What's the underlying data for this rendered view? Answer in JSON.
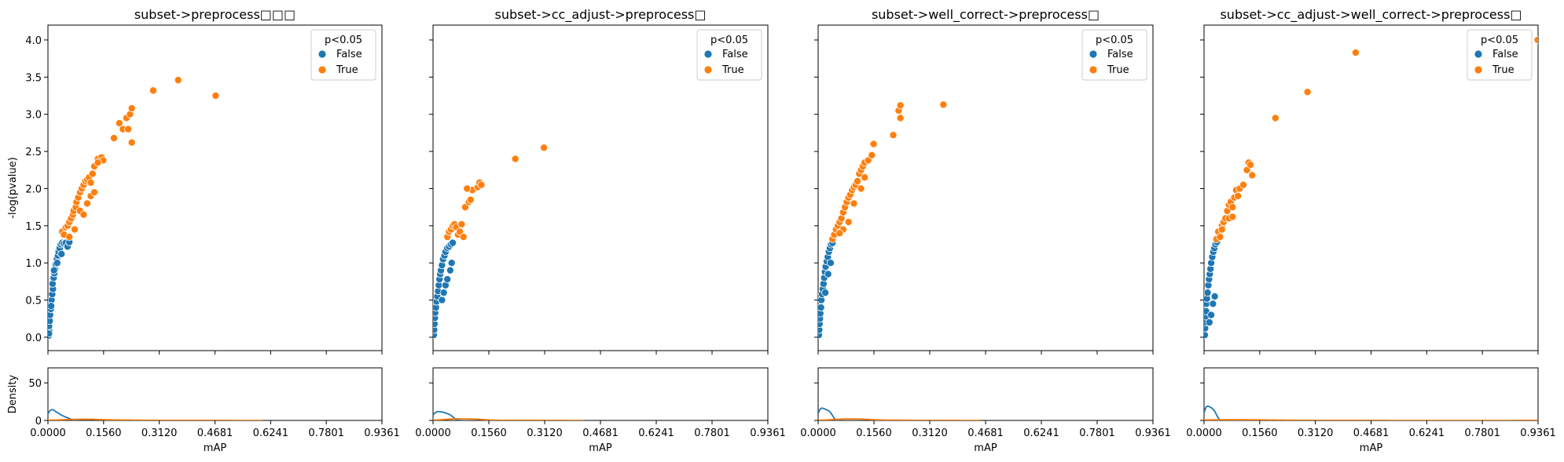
{
  "colors": {
    "false": "#1f77b4",
    "true": "#ff7f0e"
  },
  "shared": {
    "scatter_yticks": [
      "0.0",
      "0.5",
      "1.0",
      "1.5",
      "2.0",
      "2.5",
      "3.0",
      "3.5",
      "4.0"
    ],
    "density_yticks": [
      "0",
      "50"
    ],
    "xticks": [
      "0.0000",
      "0.1560",
      "0.3120",
      "0.4681",
      "0.6241",
      "0.7801",
      "0.9361"
    ],
    "ylabel": "-log(pvalue)",
    "density_ylabel": "Density",
    "xlabel": "mAP",
    "legend": {
      "title": "p<0.05",
      "entries": [
        "False",
        "True"
      ]
    }
  },
  "chart_data": [
    {
      "type": "scatter",
      "title": "subset->preprocess□□□",
      "xlim": [
        0,
        0.9361
      ],
      "ylim": [
        -0.18,
        4.2
      ],
      "density_ylim": [
        0,
        70
      ],
      "xlabel": "mAP",
      "ylabel": "-log(pvalue)",
      "series": [
        {
          "name": "False",
          "points": [
            [
              0.002,
              0.02
            ],
            [
              0.004,
              0.08
            ],
            [
              0.003,
              0.15
            ],
            [
              0.005,
              0.22
            ],
            [
              0.006,
              0.3
            ],
            [
              0.008,
              0.38
            ],
            [
              0.007,
              0.45
            ],
            [
              0.01,
              0.5
            ],
            [
              0.012,
              0.58
            ],
            [
              0.014,
              0.65
            ],
            [
              0.013,
              0.72
            ],
            [
              0.016,
              0.8
            ],
            [
              0.018,
              0.86
            ],
            [
              0.02,
              0.92
            ],
            [
              0.022,
              0.98
            ],
            [
              0.025,
              1.05
            ],
            [
              0.028,
              1.1
            ],
            [
              0.03,
              1.15
            ],
            [
              0.033,
              1.2
            ],
            [
              0.036,
              1.25
            ],
            [
              0.04,
              1.27
            ],
            [
              0.045,
              1.26
            ],
            [
              0.05,
              1.27
            ],
            [
              0.055,
              1.22
            ],
            [
              0.06,
              1.28
            ],
            [
              0.003,
              0.05
            ],
            [
              0.009,
              0.42
            ],
            [
              0.017,
              0.9
            ],
            [
              0.026,
              1.0
            ],
            [
              0.038,
              1.12
            ]
          ]
        },
        {
          "name": "True",
          "points": [
            [
              0.04,
              1.42
            ],
            [
              0.045,
              1.38
            ],
            [
              0.05,
              1.48
            ],
            [
              0.055,
              1.5
            ],
            [
              0.06,
              1.55
            ],
            [
              0.065,
              1.6
            ],
            [
              0.07,
              1.65
            ],
            [
              0.072,
              1.7
            ],
            [
              0.078,
              1.75
            ],
            [
              0.08,
              1.82
            ],
            [
              0.085,
              1.88
            ],
            [
              0.09,
              1.95
            ],
            [
              0.095,
              2.0
            ],
            [
              0.1,
              2.05
            ],
            [
              0.105,
              2.1
            ],
            [
              0.11,
              2.12
            ],
            [
              0.115,
              2.15
            ],
            [
              0.12,
              2.08
            ],
            [
              0.125,
              2.2
            ],
            [
              0.13,
              2.3
            ],
            [
              0.14,
              2.4
            ],
            [
              0.15,
              2.42
            ],
            [
              0.155,
              2.38
            ],
            [
              0.185,
              2.68
            ],
            [
              0.2,
              2.88
            ],
            [
              0.21,
              2.8
            ],
            [
              0.22,
              2.95
            ],
            [
              0.225,
              2.8
            ],
            [
              0.23,
              3.0
            ],
            [
              0.235,
              3.08
            ],
            [
              0.235,
              2.62
            ],
            [
              0.295,
              3.32
            ],
            [
              0.365,
              3.46
            ],
            [
              0.47,
              3.25
            ],
            [
              0.06,
              1.35
            ],
            [
              0.075,
              1.45
            ],
            [
              0.09,
              1.7
            ],
            [
              0.1,
              1.65
            ],
            [
              0.11,
              1.8
            ],
            [
              0.12,
              1.9
            ],
            [
              0.13,
              1.95
            ],
            [
              0.14,
              2.35
            ]
          ]
        }
      ]
    },
    {
      "type": "scatter",
      "title": "subset->cc_adjust->preprocess□",
      "xlim": [
        0,
        0.9361
      ],
      "ylim": [
        -0.18,
        4.2
      ],
      "density_ylim": [
        0,
        70
      ],
      "xlabel": "mAP",
      "ylabel": "",
      "series": [
        {
          "name": "False",
          "points": [
            [
              0.002,
              0.03
            ],
            [
              0.003,
              0.1
            ],
            [
              0.004,
              0.18
            ],
            [
              0.005,
              0.26
            ],
            [
              0.006,
              0.33
            ],
            [
              0.008,
              0.4
            ],
            [
              0.01,
              0.48
            ],
            [
              0.012,
              0.55
            ],
            [
              0.014,
              0.62
            ],
            [
              0.016,
              0.7
            ],
            [
              0.018,
              0.78
            ],
            [
              0.02,
              0.85
            ],
            [
              0.022,
              0.9
            ],
            [
              0.025,
              0.97
            ],
            [
              0.028,
              1.05
            ],
            [
              0.032,
              1.1
            ],
            [
              0.035,
              1.15
            ],
            [
              0.04,
              1.2
            ],
            [
              0.045,
              1.22
            ],
            [
              0.05,
              1.25
            ],
            [
              0.055,
              1.27
            ],
            [
              0.048,
              0.9
            ],
            [
              0.052,
              1.0
            ],
            [
              0.03,
              0.6
            ],
            [
              0.035,
              0.7
            ],
            [
              0.04,
              0.78
            ],
            [
              0.025,
              0.5
            ]
          ]
        },
        {
          "name": "True",
          "points": [
            [
              0.04,
              1.35
            ],
            [
              0.045,
              1.42
            ],
            [
              0.05,
              1.45
            ],
            [
              0.055,
              1.5
            ],
            [
              0.06,
              1.52
            ],
            [
              0.065,
              1.48
            ],
            [
              0.07,
              1.38
            ],
            [
              0.075,
              1.42
            ],
            [
              0.08,
              1.52
            ],
            [
              0.085,
              1.35
            ],
            [
              0.09,
              1.75
            ],
            [
              0.1,
              1.82
            ],
            [
              0.105,
              1.85
            ],
            [
              0.11,
              1.98
            ],
            [
              0.125,
              2.02
            ],
            [
              0.13,
              2.08
            ],
            [
              0.135,
              2.05
            ],
            [
              0.23,
              2.4
            ],
            [
              0.31,
              2.55
            ],
            [
              0.095,
              2.0
            ]
          ]
        }
      ]
    },
    {
      "type": "scatter",
      "title": "subset->well_correct->preprocess□",
      "xlim": [
        0,
        0.9361
      ],
      "ylim": [
        -0.18,
        4.2
      ],
      "density_ylim": [
        0,
        70
      ],
      "xlabel": "mAP",
      "ylabel": "",
      "series": [
        {
          "name": "False",
          "points": [
            [
              0.002,
              0.03
            ],
            [
              0.003,
              0.1
            ],
            [
              0.004,
              0.18
            ],
            [
              0.005,
              0.25
            ],
            [
              0.006,
              0.32
            ],
            [
              0.008,
              0.4
            ],
            [
              0.009,
              0.5
            ],
            [
              0.011,
              0.58
            ],
            [
              0.013,
              0.65
            ],
            [
              0.015,
              0.72
            ],
            [
              0.017,
              0.8
            ],
            [
              0.019,
              0.88
            ],
            [
              0.021,
              0.95
            ],
            [
              0.024,
              1.02
            ],
            [
              0.027,
              1.08
            ],
            [
              0.03,
              1.15
            ],
            [
              0.033,
              1.2
            ],
            [
              0.036,
              1.25
            ],
            [
              0.04,
              1.27
            ],
            [
              0.028,
              0.85
            ],
            [
              0.02,
              0.6
            ],
            [
              0.035,
              1.0
            ]
          ]
        },
        {
          "name": "True",
          "points": [
            [
              0.04,
              1.32
            ],
            [
              0.045,
              1.38
            ],
            [
              0.05,
              1.45
            ],
            [
              0.055,
              1.5
            ],
            [
              0.06,
              1.55
            ],
            [
              0.065,
              1.6
            ],
            [
              0.07,
              1.68
            ],
            [
              0.075,
              1.75
            ],
            [
              0.08,
              1.82
            ],
            [
              0.085,
              1.88
            ],
            [
              0.09,
              1.92
            ],
            [
              0.095,
              1.98
            ],
            [
              0.1,
              2.02
            ],
            [
              0.105,
              2.05
            ],
            [
              0.11,
              2.1
            ],
            [
              0.115,
              2.2
            ],
            [
              0.12,
              2.25
            ],
            [
              0.125,
              2.3
            ],
            [
              0.13,
              2.35
            ],
            [
              0.14,
              2.38
            ],
            [
              0.15,
              2.45
            ],
            [
              0.155,
              2.6
            ],
            [
              0.21,
              2.72
            ],
            [
              0.225,
              3.05
            ],
            [
              0.23,
              3.12
            ],
            [
              0.23,
              2.95
            ],
            [
              0.35,
              3.13
            ],
            [
              0.07,
              1.45
            ],
            [
              0.085,
              1.55
            ],
            [
              0.1,
              1.8
            ],
            [
              0.12,
              2.0
            ],
            [
              0.13,
              2.15
            ],
            [
              0.06,
              1.4
            ]
          ]
        }
      ]
    },
    {
      "type": "scatter",
      "title": "subset->cc_adjust->well_correct->preprocess□",
      "xlim": [
        0,
        0.9361
      ],
      "ylim": [
        -0.18,
        4.2
      ],
      "density_ylim": [
        0,
        70
      ],
      "xlabel": "mAP",
      "ylabel": "",
      "series": [
        {
          "name": "False",
          "points": [
            [
              0.002,
              0.03
            ],
            [
              0.003,
              0.12
            ],
            [
              0.004,
              0.2
            ],
            [
              0.005,
              0.28
            ],
            [
              0.006,
              0.35
            ],
            [
              0.007,
              0.45
            ],
            [
              0.008,
              0.52
            ],
            [
              0.01,
              0.6
            ],
            [
              0.012,
              0.7
            ],
            [
              0.014,
              0.78
            ],
            [
              0.016,
              0.85
            ],
            [
              0.018,
              0.92
            ],
            [
              0.02,
              1.0
            ],
            [
              0.023,
              1.08
            ],
            [
              0.026,
              1.15
            ],
            [
              0.029,
              1.2
            ],
            [
              0.032,
              1.25
            ],
            [
              0.036,
              1.28
            ],
            [
              0.03,
              0.55
            ],
            [
              0.025,
              0.45
            ],
            [
              0.02,
              0.3
            ],
            [
              0.015,
              0.2
            ]
          ]
        },
        {
          "name": "True",
          "points": [
            [
              0.035,
              1.32
            ],
            [
              0.04,
              1.42
            ],
            [
              0.045,
              1.35
            ],
            [
              0.05,
              1.5
            ],
            [
              0.055,
              1.55
            ],
            [
              0.06,
              1.6
            ],
            [
              0.065,
              1.7
            ],
            [
              0.07,
              1.78
            ],
            [
              0.075,
              1.82
            ],
            [
              0.08,
              1.75
            ],
            [
              0.085,
              1.88
            ],
            [
              0.09,
              1.98
            ],
            [
              0.1,
              2.0
            ],
            [
              0.11,
              2.05
            ],
            [
              0.12,
              2.25
            ],
            [
              0.125,
              2.35
            ],
            [
              0.13,
              2.32
            ],
            [
              0.135,
              2.18
            ],
            [
              0.2,
              2.95
            ],
            [
              0.29,
              3.3
            ],
            [
              0.425,
              3.83
            ],
            [
              0.935,
              4.0
            ],
            [
              0.07,
              1.6
            ],
            [
              0.08,
              1.62
            ],
            [
              0.095,
              1.9
            ],
            [
              0.05,
              1.45
            ]
          ]
        }
      ]
    }
  ]
}
